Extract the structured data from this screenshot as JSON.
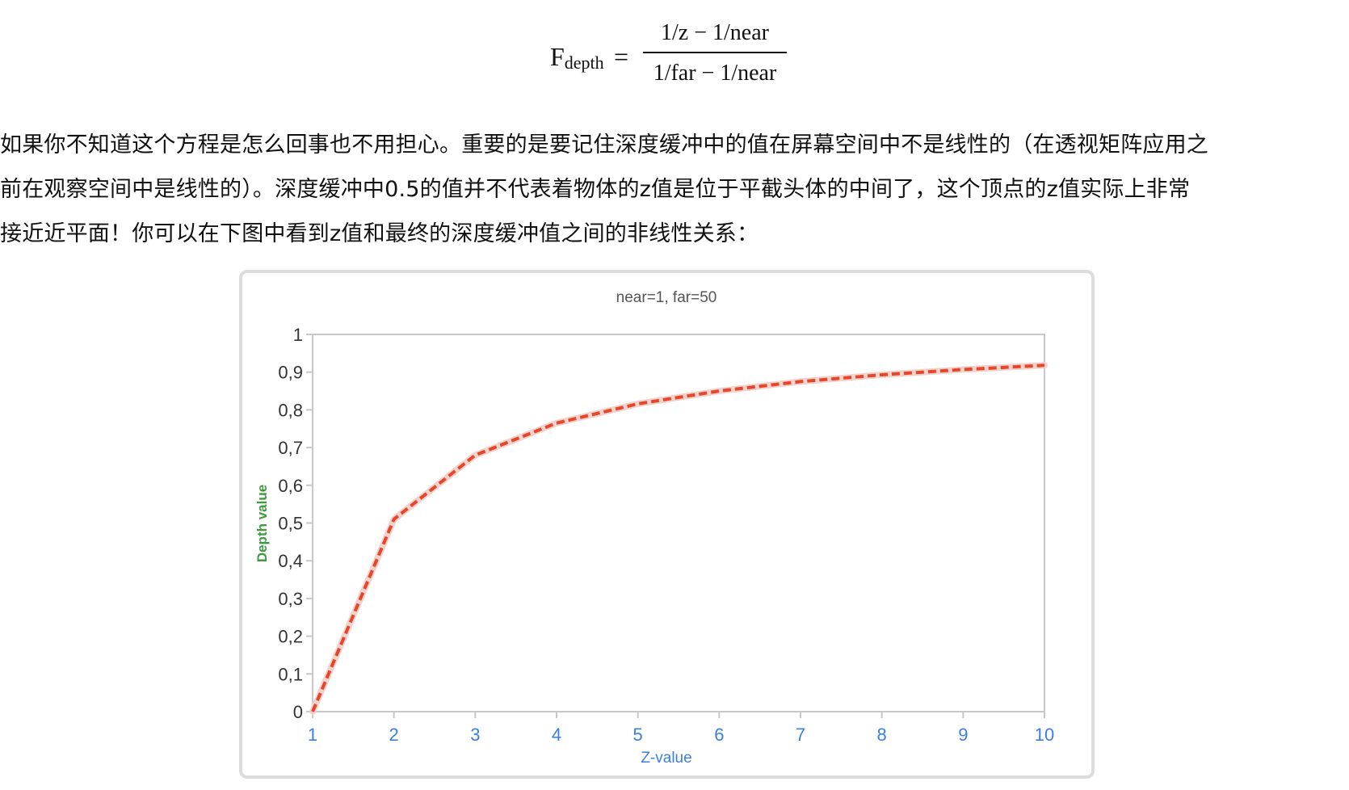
{
  "formula": {
    "lhs": "F",
    "lhs_sub": "depth",
    "eq": "=",
    "numerator": "1/z − 1/near",
    "denominator": "1/far − 1/near"
  },
  "paragraph": {
    "line1": "如果你不知道这个方程是怎么回事也不用担心。重要的是要记住深度缓冲中的值在屏幕空间中不是线性的（在透视矩阵应用之",
    "line2": "前在观察空间中是线性的）。深度缓冲中0.5的值并不代表着物体的z值是位于平截头体的中间了，这个顶点的z值实际上非常",
    "line3": "接近近平面！你可以在下图中看到z值和最终的深度缓冲值之间的非线性关系："
  },
  "chart_data": {
    "type": "line",
    "title": "near=1, far=50",
    "xlabel": "Z-value",
    "ylabel": "Depth value",
    "x": [
      1,
      2,
      3,
      4,
      5,
      6,
      7,
      8,
      9,
      10
    ],
    "x_tick_labels": [
      "1",
      "2",
      "3",
      "4",
      "5",
      "6",
      "7",
      "8",
      "9",
      "10"
    ],
    "y_ticks": [
      0,
      0.1,
      0.2,
      0.3,
      0.4,
      0.5,
      0.6,
      0.7,
      0.8,
      0.9,
      1
    ],
    "y_tick_labels": [
      "0",
      "0,1",
      "0,2",
      "0,3",
      "0,4",
      "0,5",
      "0,6",
      "0,7",
      "0,8",
      "0,9",
      "1"
    ],
    "xlim": [
      1,
      10
    ],
    "ylim": [
      0,
      1
    ],
    "grid": false,
    "legend": "none",
    "series": [
      {
        "values": [
          0,
          0.51,
          0.68,
          0.765,
          0.816,
          0.85,
          0.875,
          0.893,
          0.907,
          0.918
        ],
        "color": "#e8462a",
        "style": "dashed"
      }
    ],
    "colors": {
      "title": "#555555",
      "xlabel": "#3a7fe0",
      "ylabel": "#3e9a3e",
      "xticks": "#3a7fe0",
      "yticks": "#333333",
      "axes": "#c8c8c8",
      "line": "#e8462a"
    }
  }
}
